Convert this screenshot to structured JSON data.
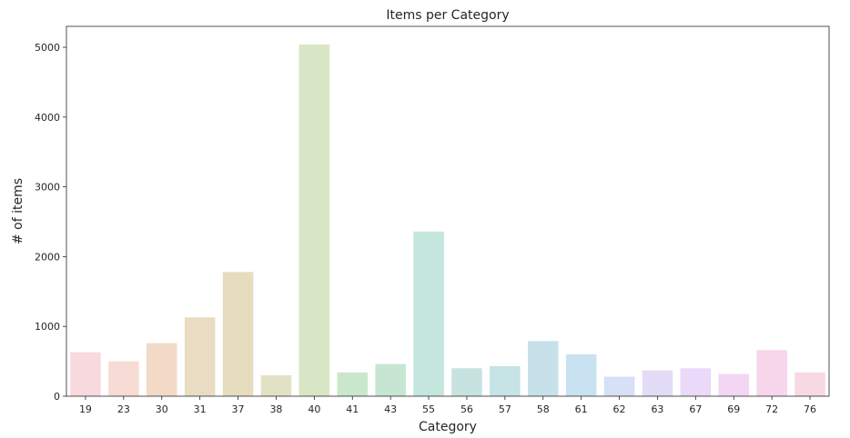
{
  "chart_data": {
    "type": "bar",
    "title": "Items per Category",
    "xlabel": "Category",
    "ylabel": "# of items",
    "categories": [
      "19",
      "23",
      "30",
      "31",
      "37",
      "38",
      "40",
      "41",
      "43",
      "55",
      "56",
      "57",
      "58",
      "61",
      "62",
      "63",
      "67",
      "69",
      "72",
      "76"
    ],
    "values": [
      630,
      500,
      760,
      1130,
      1780,
      300,
      5040,
      340,
      460,
      2360,
      400,
      430,
      790,
      600,
      280,
      370,
      400,
      320,
      660,
      340
    ],
    "colors": [
      "#f8d9dd",
      "#f7dcd6",
      "#f3dac6",
      "#eadcc2",
      "#e6ddbf",
      "#e1e2c5",
      "#d9e6c5",
      "#cae7cc",
      "#c6e6d2",
      "#c4e6dd",
      "#c6e3e0",
      "#c6e3e6",
      "#c7e1ea",
      "#c9e2f2",
      "#d6e0f7",
      "#e2dcf8",
      "#ead9f8",
      "#f3d6f4",
      "#f7d5eb",
      "#f8d8e2"
    ],
    "ylim": [
      0,
      5300
    ],
    "yticks": [
      0,
      1000,
      2000,
      3000,
      4000,
      5000
    ],
    "grid": false,
    "legend": "none"
  }
}
